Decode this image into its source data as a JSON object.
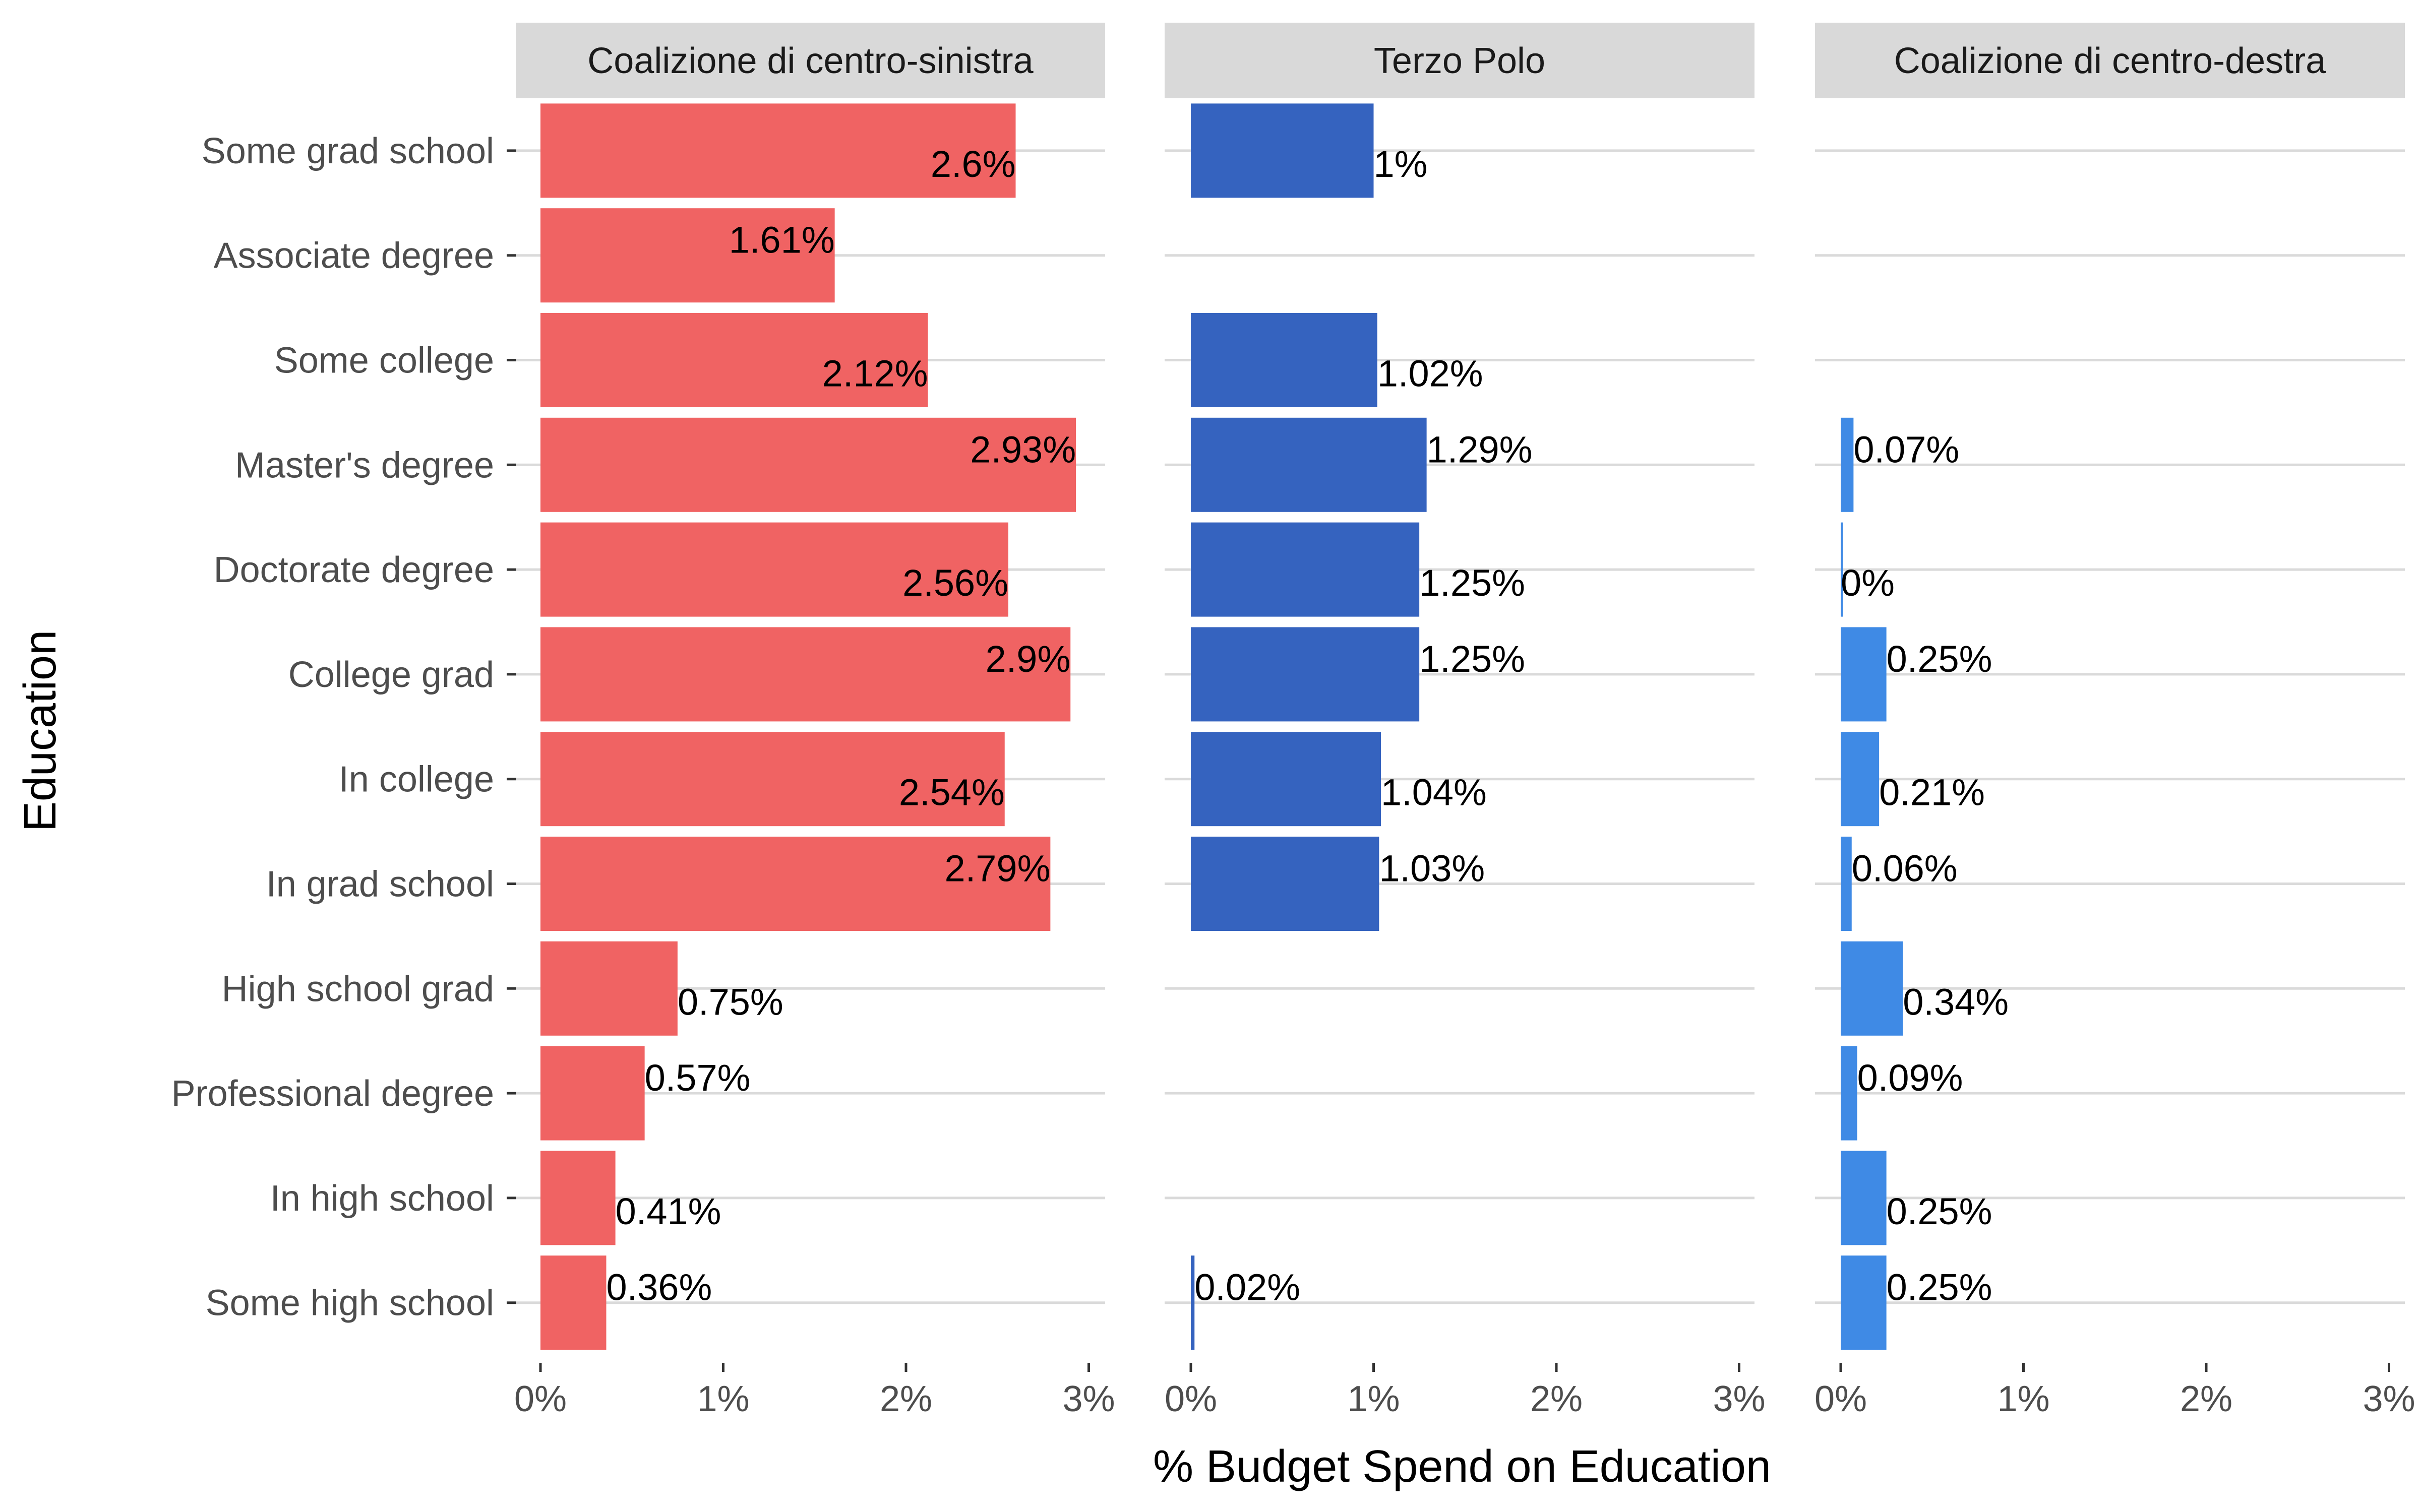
{
  "chart_data": {
    "type": "bar",
    "orientation": "horizontal",
    "facet_by": "coalition",
    "xlabel": "% Budget Spend on Education",
    "ylabel": "Education",
    "xlim": [
      0,
      3
    ],
    "xticks": [
      "0%",
      "1%",
      "2%",
      "3%"
    ],
    "grid": "horizontal",
    "categories": [
      "Some grad school",
      "Associate degree",
      "Some college",
      "Master's degree",
      "Doctorate degree",
      "College grad",
      "In college",
      "In grad school",
      "High school grad",
      "Professional degree",
      "In high school",
      "Some high school"
    ],
    "panels": [
      {
        "name": "Coalizione di centro-sinistra",
        "color": "#F06060",
        "values": [
          2.6,
          1.61,
          2.12,
          2.93,
          2.56,
          2.9,
          2.54,
          2.79,
          0.75,
          0.57,
          0.41,
          0.36
        ],
        "labels": [
          "2.6%",
          "1.61%",
          "2.12%",
          "2.93%",
          "2.56%",
          "2.9%",
          "2.54%",
          "2.79%",
          "0.75%",
          "0.57%",
          "0.41%",
          "0.36%"
        ]
      },
      {
        "name": "Terzo Polo",
        "color": "#3160BE",
        "values": [
          1,
          null,
          1.02,
          1.29,
          1.25,
          1.25,
          1.04,
          1.03,
          null,
          null,
          null,
          0.02
        ],
        "labels": [
          "1%",
          null,
          "1.02%",
          "1.29%",
          "1.25%",
          "1.25%",
          "1.04%",
          "1.03%",
          null,
          null,
          null,
          "0.02%"
        ]
      },
      {
        "name": "Coalizione di centro-destra",
        "color": "#3B88E4",
        "values": [
          null,
          null,
          null,
          0.07,
          0,
          0.25,
          0.21,
          0.06,
          0.34,
          0.09,
          0.25,
          0.25
        ],
        "labels": [
          null,
          null,
          null,
          "0.07%",
          "0%",
          "0.25%",
          "0.21%",
          "0.06%",
          "0.34%",
          "0.09%",
          "0.25%",
          "0.25%"
        ]
      }
    ]
  }
}
